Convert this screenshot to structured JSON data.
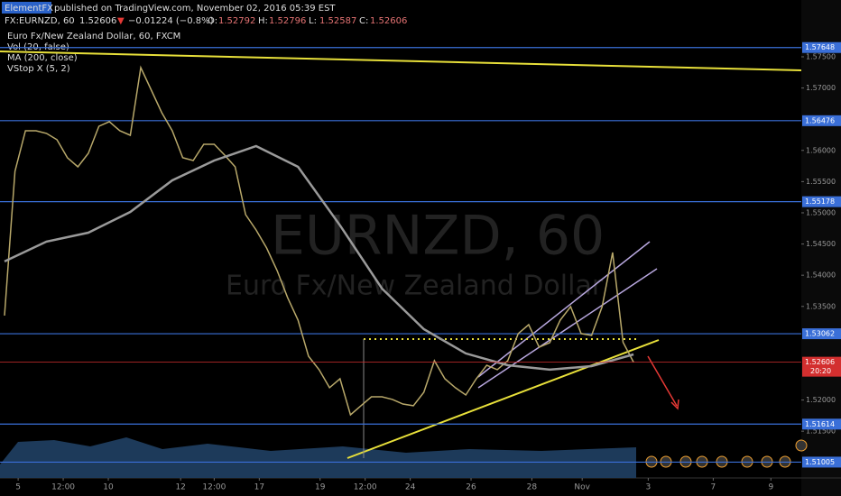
{
  "header": {
    "author": "ElementFX",
    "published": "published on TradingView.com, November 02, 2016 05:39 EST",
    "symbol": "FX:EURNZD, 60",
    "price": "1.52606",
    "arrow": "▼",
    "change": "−0.01224 (−0.8%)",
    "ohlc": [
      "O:",
      "1.52792",
      "H:",
      "1.52796",
      "L:",
      "1.52587",
      "C:",
      "1.52606"
    ]
  },
  "chart_data": {
    "type": "line",
    "title": "Euro Fx/New Zealand Dollar, 60, FXCM",
    "indicators": [
      "Vol (20, false)",
      "MA (200, close)",
      "VStop X (5, 2)"
    ],
    "watermark": [
      "EURNZD, 60",
      "Euro Fx/New Zealand Dollar"
    ],
    "xlim": [
      0,
      76
    ],
    "ylim": [
      1.50751,
      1.5841
    ],
    "xticks": [
      {
        "value": 1.3,
        "label": "5"
      },
      {
        "value": 5.6,
        "label": "12:00"
      },
      {
        "value": 9.9,
        "label": "10"
      },
      {
        "value": 16.8,
        "label": "12"
      },
      {
        "value": 20,
        "label": "12:00"
      },
      {
        "value": 24.3,
        "label": "17"
      },
      {
        "value": 30.1,
        "label": "19"
      },
      {
        "value": 34.4,
        "label": "12:00"
      },
      {
        "value": 38.7,
        "label": "24"
      },
      {
        "value": 44.5,
        "label": "26"
      },
      {
        "value": 50.3,
        "label": "28"
      },
      {
        "value": 55.1,
        "label": "Nov"
      },
      {
        "value": 61.4,
        "label": "3"
      },
      {
        "value": 67.6,
        "label": "7"
      },
      {
        "value": 73.1,
        "label": "9"
      }
    ],
    "yticks": [
      {
        "value": 1.515,
        "label": "1.51500"
      },
      {
        "value": 1.52,
        "label": "1.52000"
      },
      {
        "value": 1.535,
        "label": "1.53500"
      },
      {
        "value": 1.54,
        "label": "1.54000"
      },
      {
        "value": 1.545,
        "label": "1.54500"
      },
      {
        "value": 1.55,
        "label": "1.55000"
      },
      {
        "value": 1.555,
        "label": "1.55500"
      },
      {
        "value": 1.56,
        "label": "1.56000"
      },
      {
        "value": 1.57,
        "label": "1.57000"
      },
      {
        "value": 1.575,
        "label": "1.57500"
      }
    ],
    "series": [
      {
        "name": "EURNZD",
        "color": "#b8a86a",
        "values": [
          1.53353,
          1.55665,
          1.56315,
          1.56315,
          1.56272,
          1.56171,
          1.55882,
          1.55737,
          1.55954,
          1.56387,
          1.5646,
          1.56315,
          1.56243,
          1.57327,
          1.56965,
          1.56604,
          1.56315,
          1.55882,
          1.55838,
          1.56098,
          1.56098,
          1.55925,
          1.55737,
          1.54971,
          1.54725,
          1.54436,
          1.54075,
          1.53642,
          1.5328,
          1.52702,
          1.52486,
          1.52197,
          1.52341,
          1.51763,
          1.51908,
          1.52052,
          1.52052,
          1.52009,
          1.51936,
          1.51908,
          1.52124,
          1.5263,
          1.52341,
          1.52197,
          1.52081,
          1.52341,
          1.52558,
          1.52486,
          1.5263,
          1.53064,
          1.53208,
          1.52847,
          1.52919,
          1.5328,
          1.53497,
          1.53064,
          1.53035,
          1.53497,
          1.54364,
          1.52925,
          1.52606
        ]
      },
      {
        "name": "MA (200, close)",
        "color": "#9a9a9a",
        "x": [
          0,
          4,
          8,
          12,
          16,
          20,
          24,
          28,
          32,
          36,
          40,
          44,
          48,
          52,
          56,
          60
        ],
        "values": [
          1.5422,
          1.54538,
          1.54682,
          1.55014,
          1.5552,
          1.55838,
          1.56069,
          1.55737,
          1.54798,
          1.53786,
          1.53136,
          1.52746,
          1.52558,
          1.52486,
          1.52543,
          1.52731
        ]
      }
    ],
    "levels": [
      1.57648,
      1.56476,
      1.55178,
      1.53062,
      1.51614,
      1.51005
    ],
    "level_color": "#3a6fd8",
    "last_price": 1.52606,
    "last_time": "20:20",
    "last_color": "#d32f2f"
  }
}
